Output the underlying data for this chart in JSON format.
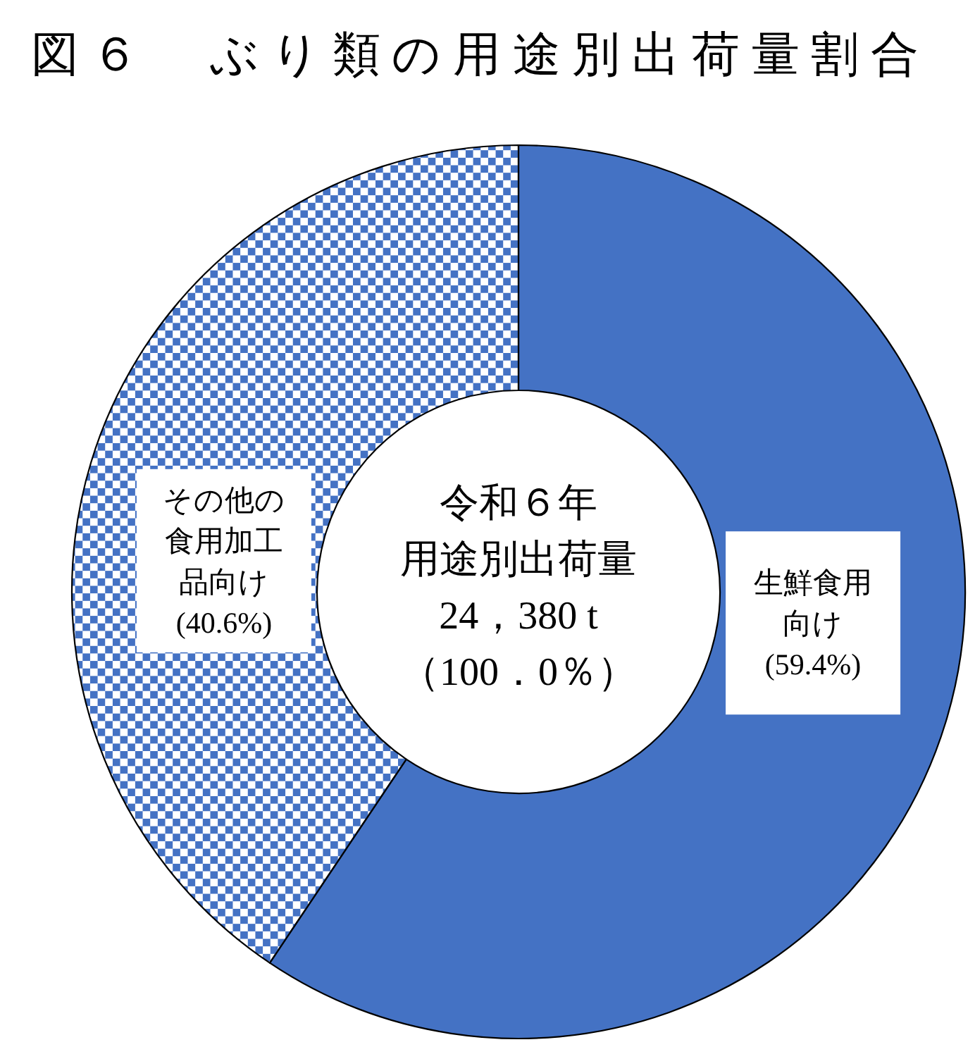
{
  "chart_data": {
    "type": "donut",
    "title": "図６　ぶり類の用途別出荷量割合",
    "categories": [
      "生鮮食用向け",
      "その他の食用加工品向け"
    ],
    "values": [
      59.4,
      40.6
    ],
    "colors": [
      "#4472c4",
      "#4472c4"
    ],
    "value_labels": [
      "(59.4%)",
      "(40.6%)"
    ],
    "annotations": [
      "令和６年",
      "用途別出荷量",
      "24，380 t",
      "（100．0％）"
    ]
  }
}
